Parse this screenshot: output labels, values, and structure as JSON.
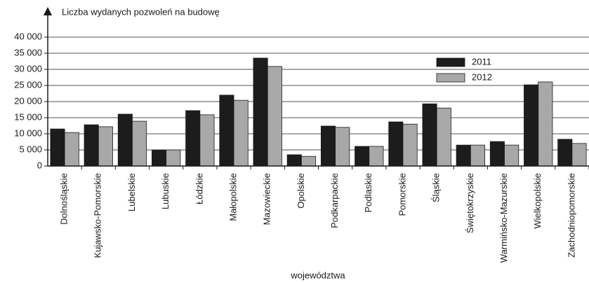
{
  "chart_data": {
    "type": "bar",
    "y_label": "Liczba wydanych pozwoleń na budowę",
    "x_label": "województwa",
    "categories": [
      "Dolnośląskie",
      "Kujawsko-Pomorskie",
      "Lubelskie",
      "Lubuskie",
      "Łódzkie",
      "Małopolskie",
      "Mazowieckie",
      "Opolskie",
      "Podkarpackie",
      "Podlaskie",
      "Pomorskie",
      "Śląskie",
      "Świętokrzyskie",
      "Warmińsko-Mazurskie",
      "Wielkopolskie",
      "Zachodniopomorskie"
    ],
    "series": [
      {
        "name": "2011",
        "color": "#1c1c1c",
        "values": [
          11500,
          12800,
          16100,
          5000,
          17200,
          22000,
          33500,
          3500,
          12400,
          6100,
          13700,
          19300,
          6500,
          7600,
          25200,
          8300
        ]
      },
      {
        "name": "2012",
        "color": "#a8a8a8",
        "values": [
          10400,
          12200,
          13900,
          5000,
          15900,
          20400,
          30900,
          3000,
          12000,
          6100,
          13000,
          18000,
          6500,
          6500,
          26100,
          7000
        ]
      }
    ],
    "ylim": [
      0,
      40000
    ],
    "yticks": [
      0,
      {
        "value": 5000,
        "label": "5 000"
      },
      {
        "value": 10000,
        "label": "10 000"
      },
      {
        "value": 15000,
        "label": "15 000"
      },
      {
        "value": 20000,
        "label": "20 000"
      },
      {
        "value": 25000,
        "label": "25 000"
      },
      {
        "value": 30000,
        "label": "30 000"
      },
      {
        "value": 35000,
        "label": "35 000"
      },
      {
        "value": 40000,
        "label": "40 000"
      }
    ],
    "grid": true,
    "legend": "upper-right"
  }
}
